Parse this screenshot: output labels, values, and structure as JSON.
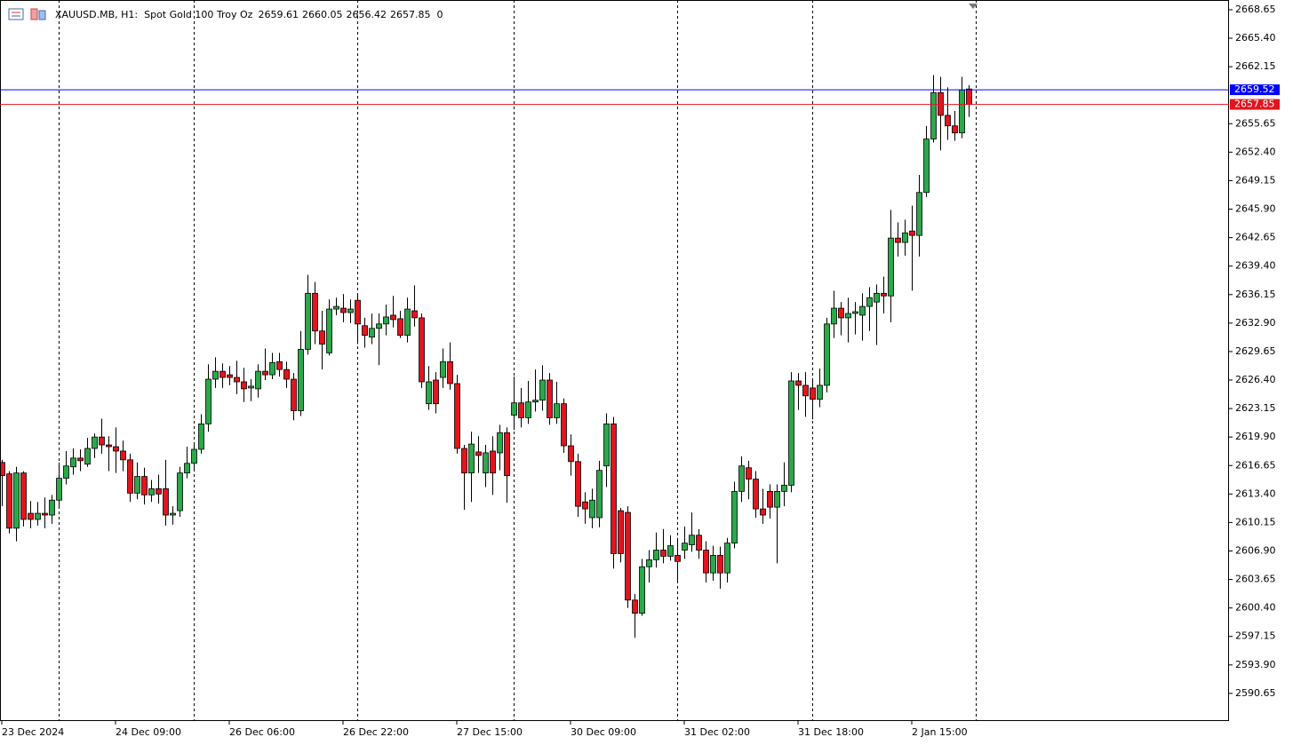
{
  "chart_data": {
    "type": "candlestick",
    "title": "XAUUSD.MB, H1:  Spot Gold 100 Troy Oz",
    "volume": 0,
    "ask": 2659.52,
    "ask_color": "#0000ff",
    "up_color": "#2ba84a",
    "down_color": "#e3141e",
    "ylim": [
      2587.5,
      2669.76
    ],
    "yticks": [
      2668.65,
      {
        "value": 2665.4,
        "label": "2665.40"
      },
      2662.15,
      2655.65,
      {
        "value": 2652.4,
        "label": "2652.40"
      },
      2649.15,
      {
        "value": 2645.9,
        "label": "2645.90"
      },
      2642.65,
      {
        "value": 2639.4,
        "label": "2639.40"
      },
      2636.15,
      {
        "value": 2632.9,
        "label": "2632.90"
      },
      2629.65,
      {
        "value": 2626.4,
        "label": "2626.40"
      },
      2623.15,
      {
        "value": 2619.9,
        "label": "2619.90"
      },
      2616.65,
      {
        "value": 2613.4,
        "label": "2613.40"
      },
      2610.15,
      {
        "value": 2606.9,
        "label": "2606.90"
      },
      2603.65,
      {
        "value": 2600.4,
        "label": "2600.40"
      },
      2597.15,
      {
        "value": 2593.9,
        "label": "2593.90"
      },
      2590.65
    ],
    "categories": [
      "23 Dec 2024",
      null,
      null,
      null,
      null,
      null,
      null,
      null,
      null,
      null,
      null,
      null,
      null,
      null,
      null,
      null,
      "24 Dec 09:00",
      null,
      null,
      null,
      null,
      null,
      null,
      null,
      null,
      null,
      null,
      null,
      null,
      null,
      null,
      null,
      "26 Dec 06:00",
      null,
      null,
      null,
      null,
      null,
      null,
      null,
      null,
      null,
      null,
      null,
      null,
      null,
      null,
      null,
      "26 Dec 22:00",
      null,
      null,
      null,
      null,
      null,
      null,
      null,
      null,
      null,
      null,
      null,
      null,
      null,
      null,
      null,
      "27 Dec 15:00",
      null,
      null,
      null,
      null,
      null,
      null,
      null,
      null,
      null,
      null,
      null,
      null,
      null,
      null,
      null,
      "30 Dec 09:00",
      null,
      null,
      null,
      null,
      null,
      null,
      null,
      null,
      null,
      null,
      null,
      null,
      null,
      null,
      null,
      "31 Dec 02:00",
      null,
      null,
      null,
      null,
      null,
      null,
      null,
      null,
      null,
      null,
      null,
      null,
      null,
      null,
      null,
      "31 Dec 18:00",
      null,
      null,
      null,
      null,
      null,
      null,
      null,
      null,
      null,
      null,
      null,
      null,
      null,
      null,
      null,
      "2 Jan 15:00",
      null,
      null,
      null,
      null,
      null,
      null,
      null,
      null
    ],
    "open": [
      2617.0,
      2615.7,
      2609.5,
      2615.8,
      2611.2,
      2610.5,
      2611.2,
      2611.0,
      2612.7,
      2615.2,
      2616.5,
      2617.5,
      2616.8,
      2618.6,
      2619.9,
      2619.0,
      2618.8,
      2618.3,
      2617.3,
      2613.5,
      2615.4,
      2613.3,
      2614.0,
      2614.0,
      2611.0,
      2611.5,
      2615.8,
      2616.9,
      2618.5,
      2621.4,
      2626.5,
      2627.4,
      2627.0,
      2626.7,
      2626.2,
      2625.5,
      2625.4,
      2627.4,
      2627.0,
      2628.5,
      2627.6,
      2626.5,
      2622.9,
      2629.9,
      2636.3,
      2632.0,
      2629.5,
      2634.5,
      2634.6,
      2634.1,
      2635.5,
      2632.6,
      2631.3,
      2632.3,
      2632.8,
      2633.8,
      2633.4,
      2631.5,
      2634.3,
      2633.5,
      2623.7,
      2626.4,
      2626.7,
      2628.5,
      2626.0,
      2618.6,
      2615.8,
      2618.2,
      2615.8,
      2618.3,
      2618.1,
      2620.4,
      2622.4,
      2623.8,
      2622.1,
      2623.9,
      2624.1,
      2626.4,
      2622.1,
      2623.7,
      2618.9,
      2617.1,
      2612.5,
      2610.7,
      2610.7,
      2616.6,
      2621.4,
      2611.5,
      2611.3,
      2601.3,
      2599.8,
      2605.1,
      2605.9,
      2607.0,
      2606.3,
      2606.4,
      2607.0,
      2607.6,
      2608.7,
      2607.0,
      2604.4,
      2606.4,
      2604.4,
      2607.8,
      2613.7,
      2616.4,
      2615.1,
      2611.7,
      2613.7,
      2611.9,
      2613.7,
      2614.4,
      2626.3,
      2625.8,
      2625.5,
      2624.2,
      2625.8,
      2632.8,
      2634.6,
      2633.5,
      2634.0,
      2633.8,
      2634.8,
      2635.3,
      2636.3,
      2636.0,
      2642.6,
      2642.1,
      2643.4,
      2642.9,
      2647.8,
      2653.9,
      2659.2,
      2656.6,
      2655.4,
      2654.6,
      2659.61
    ],
    "high": [
      2617.3,
      2616.0,
      2616.5,
      2616.0,
      2612.6,
      2612.5,
      2613.0,
      2613.3,
      2617.0,
      2618.3,
      2618.6,
      2618.5,
      2619.8,
      2620.3,
      2622.0,
      2620.0,
      2621.0,
      2619.5,
      2618.0,
      2617.0,
      2616.4,
      2615.0,
      2615.6,
      2617.3,
      2612.0,
      2616.5,
      2618.8,
      2619.2,
      2622.5,
      2628.2,
      2629.0,
      2628.3,
      2628.0,
      2628.6,
      2627.8,
      2626.5,
      2628.2,
      2630.0,
      2629.5,
      2629.5,
      2628.5,
      2627.2,
      2632.0,
      2638.4,
      2637.6,
      2634.3,
      2635.6,
      2635.8,
      2636.2,
      2635.6,
      2636.2,
      2633.5,
      2634.0,
      2634.0,
      2635.0,
      2636.0,
      2634.3,
      2635.8,
      2637.2,
      2634.0,
      2628.0,
      2627.3,
      2630.0,
      2630.7,
      2627.0,
      2619.0,
      2620.5,
      2620.0,
      2619.0,
      2620.0,
      2621.3,
      2621.0,
      2626.8,
      2625.5,
      2626.3,
      2627.6,
      2628.1,
      2627.2,
      2626.2,
      2624.3,
      2620.2,
      2618.0,
      2613.6,
      2614.0,
      2617.2,
      2622.6,
      2622.2,
      2611.8,
      2612.0,
      2602.0,
      2606.0,
      2607.0,
      2609.0,
      2609.4,
      2608.7,
      2608.4,
      2609.7,
      2611.3,
      2609.4,
      2608.0,
      2607.5,
      2607.4,
      2608.4,
      2614.8,
      2617.7,
      2617.2,
      2616.0,
      2614.0,
      2614.5,
      2614.5,
      2617.0,
      2627.3,
      2627.2,
      2627.3,
      2626.6,
      2627.7,
      2633.5,
      2636.6,
      2635.3,
      2635.8,
      2635.3,
      2636.3,
      2637.0,
      2637.3,
      2638.2,
      2645.8,
      2644.4,
      2644.7,
      2646.3,
      2649.8,
      2655.4,
      2661.2,
      2661.0,
      2659.8,
      2657.1,
      2661.0,
      2660.05
    ],
    "low": [
      2612.0,
      2608.9,
      2608.0,
      2609.7,
      2609.5,
      2609.8,
      2609.5,
      2610.0,
      2612.0,
      2614.5,
      2615.6,
      2616.0,
      2616.5,
      2617.5,
      2618.0,
      2616.0,
      2615.8,
      2616.0,
      2612.5,
      2612.8,
      2612.2,
      2612.5,
      2612.3,
      2609.8,
      2609.9,
      2610.8,
      2615.2,
      2616.0,
      2618.0,
      2620.5,
      2625.5,
      2625.5,
      2625.8,
      2624.8,
      2623.9,
      2624.0,
      2624.4,
      2626.4,
      2626.5,
      2626.8,
      2625.5,
      2621.8,
      2622.3,
      2629.3,
      2630.5,
      2627.6,
      2629.2,
      2633.8,
      2633.0,
      2632.9,
      2630.5,
      2630.1,
      2630.5,
      2628.1,
      2631.5,
      2632.4,
      2631.2,
      2630.7,
      2632.5,
      2625.5,
      2623.0,
      2622.6,
      2625.5,
      2625.3,
      2618.0,
      2611.6,
      2612.5,
      2615.8,
      2614.2,
      2613.3,
      2616.1,
      2612.4,
      2620.7,
      2621.0,
      2621.4,
      2622.8,
      2622.9,
      2621.3,
      2621.4,
      2618.1,
      2615.5,
      2610.8,
      2610.0,
      2609.5,
      2609.6,
      2614.2,
      2604.9,
      2605.6,
      2600.4,
      2597.0,
      2599.5,
      2603.3,
      2605.0,
      2605.5,
      2605.8,
      2603.3,
      2606.0,
      2606.8,
      2606.0,
      2603.3,
      2603.5,
      2602.6,
      2603.3,
      2607.2,
      2612.5,
      2612.8,
      2610.7,
      2610.0,
      2610.6,
      2605.5,
      2612.0,
      2613.6,
      2623.0,
      2622.2,
      2621.9,
      2623.3,
      2625.0,
      2631.2,
      2631.5,
      2630.7,
      2631.6,
      2630.9,
      2632.0,
      2630.4,
      2634.0,
      2633.0,
      2640.5,
      2640.6,
      2636.6,
      2640.5,
      2647.3,
      2653.5,
      2652.6,
      2653.8,
      2653.7,
      2654.0,
      2656.42
    ],
    "close": [
      2615.5,
      2609.5,
      2615.8,
      2610.5,
      2610.5,
      2611.2,
      2611.0,
      2612.7,
      2615.2,
      2616.6,
      2617.5,
      2617.2,
      2618.6,
      2619.9,
      2619.0,
      2618.8,
      2618.3,
      2617.3,
      2613.5,
      2615.4,
      2613.3,
      2614.0,
      2613.4,
      2611.0,
      2611.2,
      2615.8,
      2616.9,
      2618.5,
      2621.4,
      2626.5,
      2627.4,
      2626.7,
      2626.7,
      2626.2,
      2625.4,
      2625.7,
      2627.4,
      2627.0,
      2628.4,
      2627.6,
      2626.5,
      2622.9,
      2629.9,
      2636.3,
      2632.0,
      2630.5,
      2634.5,
      2634.8,
      2634.1,
      2634.5,
      2632.8,
      2631.5,
      2632.3,
      2632.8,
      2633.6,
      2633.3,
      2631.5,
      2634.5,
      2633.5,
      2626.2,
      2626.2,
      2623.7,
      2628.5,
      2626.0,
      2618.6,
      2615.8,
      2619.1,
      2617.8,
      2618.1,
      2615.8,
      2620.4,
      2615.5,
      2623.8,
      2622.1,
      2623.9,
      2624.1,
      2626.4,
      2622.1,
      2623.7,
      2618.9,
      2617.1,
      2612.0,
      2611.7,
      2612.7,
      2616.1,
      2621.4,
      2606.6,
      2606.6,
      2601.3,
      2599.8,
      2605.1,
      2605.9,
      2607.0,
      2606.3,
      2607.5,
      2605.7,
      2607.8,
      2608.7,
      2607.0,
      2604.4,
      2606.4,
      2604.4,
      2607.8,
      2613.7,
      2616.6,
      2615.1,
      2611.7,
      2611.0,
      2611.9,
      2613.7,
      2614.4,
      2626.3,
      2625.8,
      2624.6,
      2624.2,
      2625.8,
      2632.8,
      2634.6,
      2633.5,
      2634.0,
      2634.2,
      2634.8,
      2635.8,
      2636.3,
      2636.0,
      2642.6,
      2642.1,
      2643.2,
      2642.9,
      2647.8,
      2653.9,
      2659.2,
      2656.6,
      2655.4,
      2654.6,
      2659.5,
      2657.85
    ]
  }
}
